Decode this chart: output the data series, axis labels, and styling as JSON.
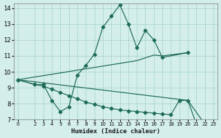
{
  "xlabel": "Humidex (Indice chaleur)",
  "xlim": [
    -0.5,
    23.5
  ],
  "ylim": [
    7,
    14.3
  ],
  "xticks": [
    0,
    2,
    3,
    4,
    5,
    6,
    7,
    8,
    9,
    10,
    11,
    12,
    13,
    14,
    15,
    16,
    17,
    18,
    19,
    20,
    21,
    22,
    23
  ],
  "yticks": [
    7,
    8,
    9,
    10,
    11,
    12,
    13,
    14
  ],
  "bg_color": "#d4eeec",
  "grid_color": "#aad4d0",
  "line_color": "#1e6b5a",
  "lines": [
    {
      "x": [
        0,
        2,
        3,
        4,
        5,
        6,
        7,
        8,
        9,
        10,
        11,
        12,
        13,
        14,
        15,
        16,
        17,
        20
      ],
      "y": [
        9.5,
        9.2,
        9.2,
        8.2,
        7.5,
        7.8,
        9.8,
        10.4,
        11.1,
        12.8,
        13.5,
        14.2,
        13.0,
        11.5,
        12.6,
        12.0,
        10.9,
        11.2
      ],
      "marker": "D",
      "markersize": 2.5,
      "lw": 0.9
    },
    {
      "x": [
        0,
        14,
        16,
        17,
        20
      ],
      "y": [
        9.5,
        10.7,
        11.05,
        11.0,
        11.2
      ],
      "marker": null,
      "markersize": 0,
      "lw": 0.9
    },
    {
      "x": [
        0,
        20,
        22,
        23
      ],
      "y": [
        9.5,
        8.2,
        6.7,
        6.7
      ],
      "marker": null,
      "markersize": 0,
      "lw": 0.9
    },
    {
      "x": [
        0,
        2,
        3,
        4,
        5,
        6,
        7,
        8,
        9,
        10,
        11,
        12,
        13,
        14,
        15,
        16,
        17,
        18,
        19,
        20,
        21,
        22,
        23
      ],
      "y": [
        9.5,
        9.2,
        9.1,
        8.9,
        8.7,
        8.5,
        8.3,
        8.1,
        7.95,
        7.8,
        7.7,
        7.6,
        7.55,
        7.5,
        7.45,
        7.4,
        7.35,
        7.3,
        8.2,
        8.2,
        6.7,
        6.7,
        6.7
      ],
      "marker": "D",
      "markersize": 2.5,
      "lw": 0.9
    }
  ]
}
